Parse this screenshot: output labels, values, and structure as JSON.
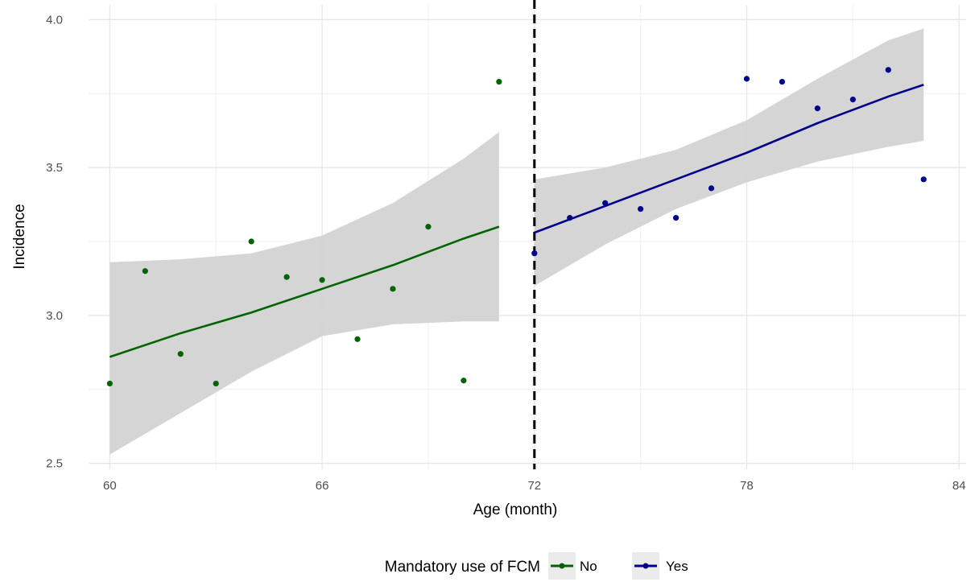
{
  "chart_data": {
    "type": "scatter",
    "xlabel": "Age (month)",
    "ylabel": "Incidence",
    "xlim": [
      59.4,
      84.2
    ],
    "ylim": [
      2.48,
      4.05
    ],
    "x_ticks": [
      "60",
      "66",
      "72",
      "78",
      "84"
    ],
    "y_ticks": [
      "2.5",
      "3.0",
      "3.5",
      "4.0"
    ],
    "grid": true,
    "cutoff_x": 72,
    "legend": {
      "title": "Mandatory use of FCM",
      "placement": "bottom",
      "entries": [
        "No",
        "Yes"
      ]
    },
    "series": [
      {
        "name": "No",
        "color": "#006400",
        "x": [
          60,
          61,
          62,
          63,
          64,
          65,
          66,
          67,
          68,
          69,
          70,
          71
        ],
        "y": [
          2.77,
          3.15,
          2.87,
          2.77,
          3.25,
          3.13,
          3.12,
          2.92,
          3.09,
          3.3,
          2.78,
          3.79
        ],
        "fit": [
          {
            "x": 60,
            "y": 2.86,
            "lower": 2.53,
            "upper": 3.18
          },
          {
            "x": 62,
            "y": 2.94,
            "lower": 2.67,
            "upper": 3.19
          },
          {
            "x": 64,
            "y": 3.01,
            "lower": 2.81,
            "upper": 3.21
          },
          {
            "x": 66,
            "y": 3.09,
            "lower": 2.93,
            "upper": 3.27
          },
          {
            "x": 68,
            "y": 3.17,
            "lower": 2.97,
            "upper": 3.38
          },
          {
            "x": 70,
            "y": 3.26,
            "lower": 2.98,
            "upper": 3.53
          },
          {
            "x": 71,
            "y": 3.3,
            "lower": 2.98,
            "upper": 3.62
          }
        ]
      },
      {
        "name": "Yes",
        "color": "#00008b",
        "x": [
          72,
          73,
          74,
          75,
          76,
          77,
          78,
          79,
          80,
          81,
          82,
          83
        ],
        "y": [
          3.21,
          3.33,
          3.38,
          3.36,
          3.33,
          3.43,
          3.8,
          3.79,
          3.7,
          3.73,
          3.83,
          3.46
        ],
        "fit": [
          {
            "x": 72,
            "y": 3.28,
            "lower": 3.1,
            "upper": 3.46
          },
          {
            "x": 74,
            "y": 3.37,
            "lower": 3.24,
            "upper": 3.5
          },
          {
            "x": 76,
            "y": 3.46,
            "lower": 3.36,
            "upper": 3.56
          },
          {
            "x": 78,
            "y": 3.55,
            "lower": 3.45,
            "upper": 3.66
          },
          {
            "x": 80,
            "y": 3.65,
            "lower": 3.52,
            "upper": 3.8
          },
          {
            "x": 82,
            "y": 3.74,
            "lower": 3.57,
            "upper": 3.93
          },
          {
            "x": 83,
            "y": 3.78,
            "lower": 3.59,
            "upper": 3.97
          }
        ]
      }
    ]
  }
}
